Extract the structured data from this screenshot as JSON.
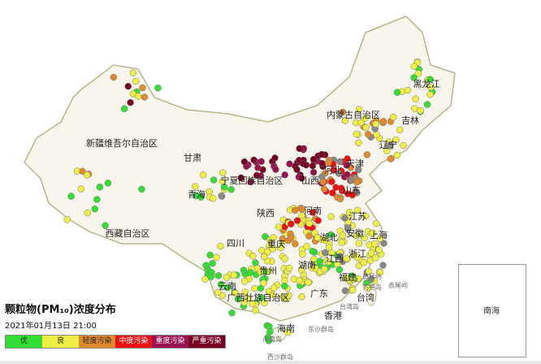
{
  "title": "颗粒物(PM₁₀)浓度分布",
  "datetime": "2021年01月13日 21:00",
  "legend": [
    {
      "label": "优",
      "color": "#33dd33",
      "text_color": "#222"
    },
    {
      "label": "良",
      "color": "#eeee44",
      "text_color": "#222"
    },
    {
      "label": "轻度污染",
      "color": "#e08a2e",
      "text_color": "#222"
    },
    {
      "label": "中度污染",
      "color": "#ee1111",
      "text_color": "#fff"
    },
    {
      "label": "重度污染",
      "color": "#99114f",
      "text_color": "#fff"
    },
    {
      "label": "严重污染",
      "color": "#770022",
      "text_color": "#fff"
    }
  ],
  "no_data_color": "#888888",
  "regions": [
    "黑龙江",
    "吉林",
    "辽宁",
    "内蒙古自治区",
    "新疆维吾尔自治区",
    "甘肃",
    "宁夏回族自治区",
    "山西",
    "天津",
    "河北",
    "山东",
    "青海",
    "河南",
    "陕西",
    "西藏自治区",
    "四川",
    "重庆",
    "湖北",
    "安徽",
    "江苏",
    "上海",
    "浙江",
    "湖南",
    "贵州",
    "江西",
    "福建",
    "云南",
    "广西壮族自治区",
    "广东",
    "台湾",
    "香港",
    "海南"
  ],
  "islands": [
    "东沙群岛",
    "西沙群岛",
    "海南岛",
    "台湾岛",
    "黄尾屿",
    "钓鱼岛",
    "赤尾屿"
  ],
  "inset_label": "南海"
}
